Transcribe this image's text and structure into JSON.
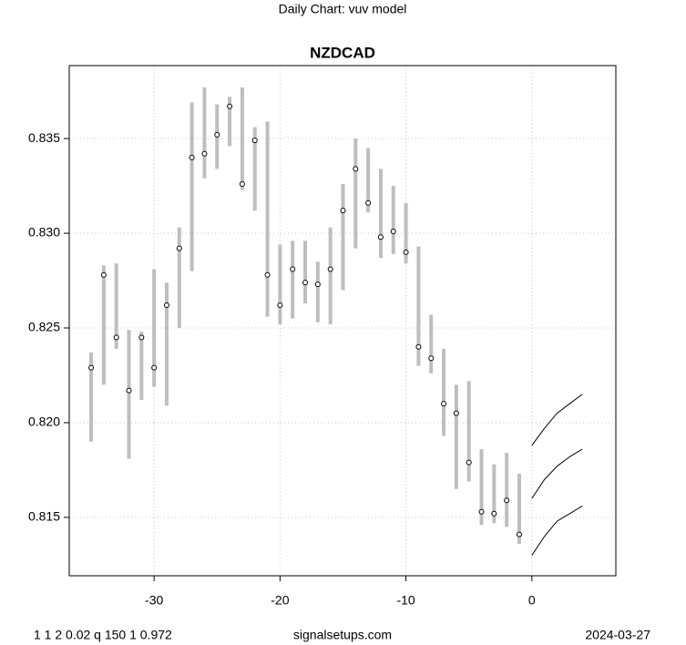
{
  "chart_data": {
    "type": "range",
    "suptitle": "Daily Chart: vuv model",
    "title": "NZDCAD",
    "x": [
      -35,
      -34,
      -33,
      -32,
      -31,
      -30,
      -29,
      -28,
      -27,
      -26,
      -25,
      -24,
      -23,
      -22,
      -21,
      -20,
      -19,
      -18,
      -17,
      -16,
      -15,
      -14,
      -13,
      -12,
      -11,
      -10,
      -9,
      -8,
      -7,
      -6,
      -5,
      -4,
      -3,
      -2,
      -1
    ],
    "values": [
      0.8229,
      0.8278,
      0.8245,
      0.8217,
      0.8245,
      0.8229,
      0.8262,
      0.8292,
      0.834,
      0.8342,
      0.8352,
      0.8367,
      0.8326,
      0.8349,
      0.8278,
      0.8262,
      0.8281,
      0.8274,
      0.8273,
      0.8281,
      0.8312,
      0.8334,
      0.8316,
      0.8298,
      0.8301,
      0.829,
      0.824,
      0.8234,
      0.821,
      0.8205,
      0.8179,
      0.8153,
      0.8152,
      0.8159,
      0.8141
    ],
    "high": [
      0.8237,
      0.8283,
      0.8284,
      0.8249,
      0.8248,
      0.8281,
      0.8274,
      0.8303,
      0.8369,
      0.8377,
      0.8368,
      0.8372,
      0.8377,
      0.8356,
      0.8359,
      0.8294,
      0.8296,
      0.8296,
      0.8285,
      0.8303,
      0.8326,
      0.835,
      0.8345,
      0.8334,
      0.8325,
      0.8316,
      0.8293,
      0.8257,
      0.8239,
      0.822,
      0.8222,
      0.8186,
      0.8178,
      0.8184,
      0.8173
    ],
    "low": [
      0.819,
      0.822,
      0.8239,
      0.8181,
      0.8212,
      0.8219,
      0.8209,
      0.825,
      0.828,
      0.8329,
      0.8334,
      0.8346,
      0.8323,
      0.8312,
      0.8256,
      0.8252,
      0.8255,
      0.8263,
      0.8253,
      0.8252,
      0.827,
      0.8292,
      0.8311,
      0.8287,
      0.8289,
      0.8284,
      0.823,
      0.8226,
      0.8193,
      0.8165,
      0.8169,
      0.8146,
      0.8147,
      0.8145,
      0.8136
    ],
    "forecast": [
      {
        "x": [
          0,
          1,
          2,
          3,
          4
        ],
        "values": [
          0.8188,
          0.8197,
          0.8205,
          0.821,
          0.8215
        ]
      },
      {
        "x": [
          0,
          1,
          2,
          3,
          4
        ],
        "values": [
          0.816,
          0.817,
          0.8177,
          0.8182,
          0.8186
        ]
      },
      {
        "x": [
          0,
          1,
          2,
          3,
          4
        ],
        "values": [
          0.813,
          0.814,
          0.8148,
          0.8152,
          0.8156
        ]
      }
    ],
    "bar_color": "#bebebe",
    "line_color": "#000000",
    "xlim": [
      -36.74,
      6.67
    ],
    "ylim": [
      0.81192,
      0.83885
    ],
    "xticks": [
      -30,
      -20,
      -10,
      0
    ],
    "yticks": [
      0.815,
      {
        "value": 0.82,
        "label": "0.820"
      },
      0.825,
      {
        "value": 0.83,
        "label": "0.830"
      },
      0.835
    ],
    "grid": true,
    "footer": {
      "left": "1 1 2 0.02 q 150 1 0.972",
      "center": "signalsetups.com",
      "right": "2024-03-27"
    }
  }
}
